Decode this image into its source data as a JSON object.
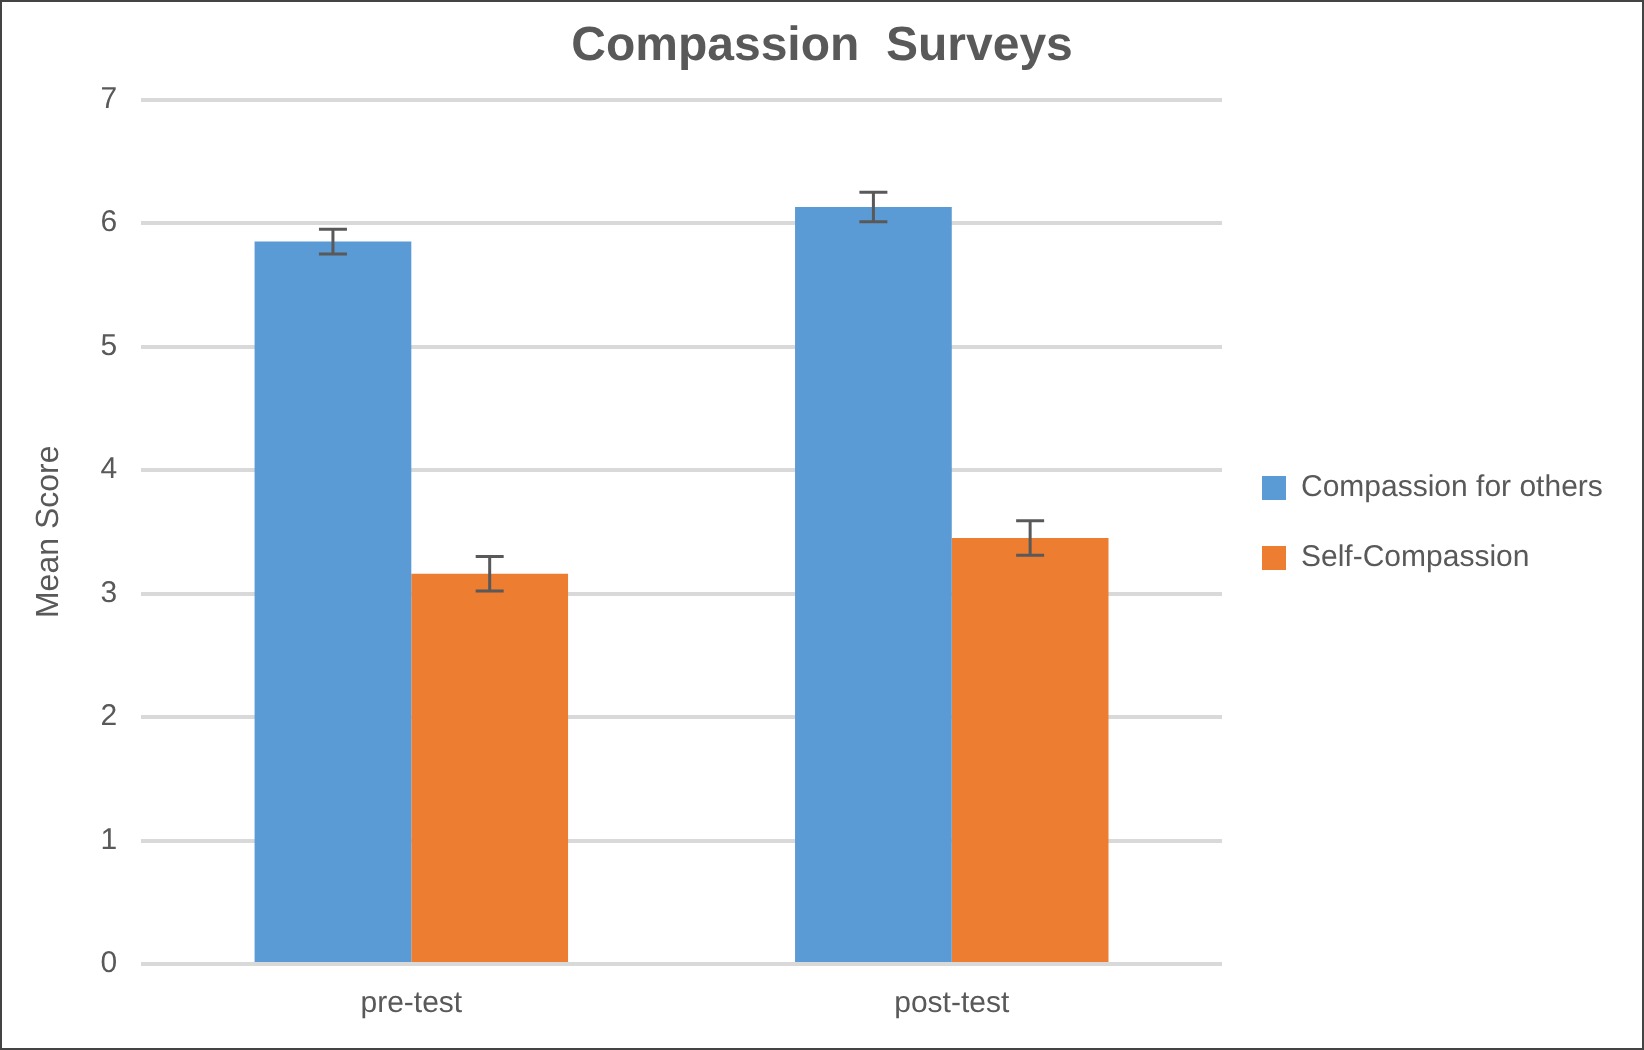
{
  "chart_data": {
    "type": "bar",
    "title": "Compassion  Surveys",
    "ylabel": "Mean Score",
    "categories": [
      "pre-test",
      "post-test"
    ],
    "series": [
      {
        "name": "Compassion for others",
        "color": "#5b9bd5",
        "values": [
          5.85,
          6.13
        ],
        "errors": [
          0.1,
          0.12
        ]
      },
      {
        "name": "Self-Compassion",
        "color": "#ed7d31",
        "values": [
          3.16,
          3.45
        ],
        "errors": [
          0.14,
          0.14
        ]
      }
    ],
    "ylim": [
      0,
      7
    ],
    "yticks": [
      0,
      1,
      2,
      3,
      4,
      5,
      6,
      7
    ],
    "grid": "y",
    "legend": "right"
  }
}
